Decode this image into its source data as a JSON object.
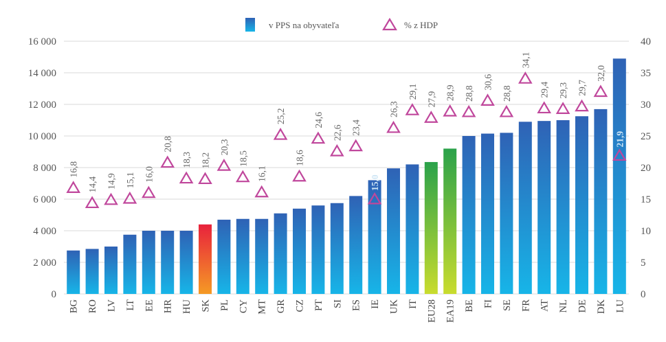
{
  "chart_data": {
    "type": "bar+scatter",
    "categories": [
      "BG",
      "RO",
      "LV",
      "LT",
      "EE",
      "HR",
      "HU",
      "SK",
      "PL",
      "CY",
      "MT",
      "GR",
      "CZ",
      "PT",
      "SI",
      "ES",
      "IE",
      "UK",
      "IT",
      "EU28",
      "EA19",
      "BE",
      "FI",
      "SE",
      "FR",
      "AT",
      "NL",
      "DE",
      "DK",
      "LU"
    ],
    "series": [
      {
        "name": "v PPS na obyvateľa",
        "axis": "left",
        "kind": "bar",
        "values": [
          2750,
          2850,
          3000,
          3750,
          4000,
          4000,
          4000,
          4400,
          4700,
          4750,
          4750,
          5100,
          5400,
          5600,
          5750,
          6200,
          7200,
          7950,
          8200,
          8350,
          9200,
          10000,
          10150,
          10200,
          10900,
          10950,
          11000,
          11250,
          11700,
          14900
        ]
      },
      {
        "name": "% z HDP",
        "axis": "right",
        "kind": "marker",
        "values": [
          16.8,
          14.4,
          14.9,
          15.1,
          16.0,
          20.8,
          18.3,
          18.2,
          20.3,
          18.5,
          16.1,
          25.2,
          18.6,
          24.6,
          22.6,
          23.4,
          15.0,
          26.3,
          29.1,
          27.9,
          28.9,
          28.8,
          30.6,
          28.8,
          34.1,
          29.4,
          29.3,
          29.7,
          32.0,
          21.9
        ],
        "labels": [
          "16,8",
          "14,4",
          "14,9",
          "15,1",
          "16,0",
          "20,8",
          "18,3",
          "18,2",
          "20,3",
          "18,5",
          "16,1",
          "25,2",
          "18,6",
          "24,6",
          "22,6",
          "23,4",
          "15,0",
          "26,3",
          "29,1",
          "27,9",
          "28,9",
          "28,8",
          "30,6",
          "28,8",
          "34,1",
          "29,4",
          "29,3",
          "29,7",
          "32,0",
          "21,9"
        ]
      }
    ],
    "left_axis": {
      "ylim": [
        0,
        16000
      ],
      "ticks": [
        0,
        2000,
        4000,
        6000,
        8000,
        10000,
        12000,
        14000,
        16000
      ],
      "tick_labels": [
        "0",
        "2 000",
        "4 000",
        "6 000",
        "8 000",
        "10 000",
        "12 000",
        "14 000",
        "16 000"
      ]
    },
    "right_axis": {
      "ylim": [
        0,
        40
      ],
      "ticks": [
        0,
        5,
        10,
        15,
        20,
        25,
        30,
        35,
        40
      ],
      "tick_labels": [
        "0",
        "5",
        "10",
        "15",
        "20",
        "25",
        "30",
        "35",
        "40"
      ]
    },
    "highlight": {
      "SK": "red",
      "EU28": "green",
      "EA19": "green"
    },
    "grid": "horizontal",
    "legend_position": "top-center",
    "colors": {
      "bar_top": "#2f62b5",
      "bar_bottom": "#17b5e8",
      "sk_top": "#e8223c",
      "sk_bottom": "#f59a25",
      "eu_top": "#2aa24a",
      "eu_bottom": "#c9dc2e",
      "marker": "#c0479c",
      "grid": "#d9d9d9"
    }
  }
}
